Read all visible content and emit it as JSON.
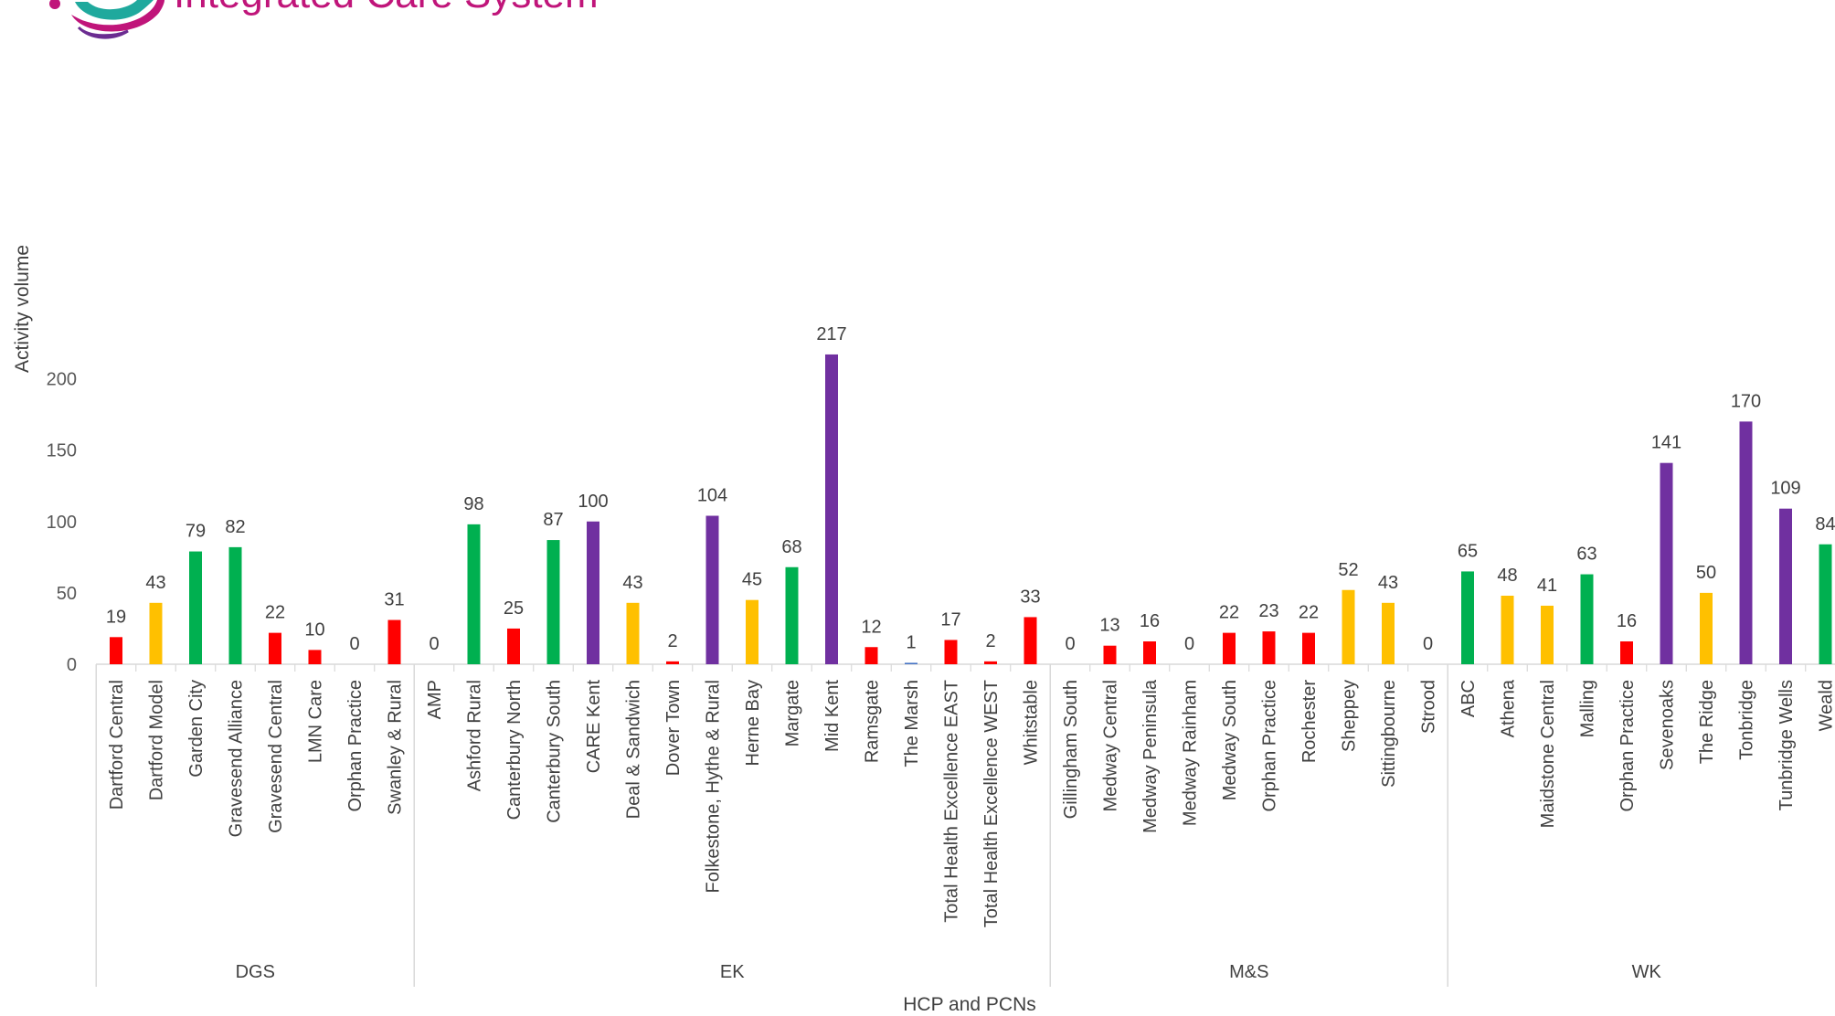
{
  "logo": {
    "text": "Integrated Care System"
  },
  "colors": {
    "red": "#ff0000",
    "amber": "#ffc000",
    "green": "#00b050",
    "purple": "#7030a0",
    "blue": "#4472c4",
    "axis": "#d9d9d9",
    "text": "#404040",
    "logo_magenta": "#c0157a",
    "logo_teal": "#1fa99d",
    "logo_purple": "#6b2c91"
  },
  "chart_data": {
    "type": "bar",
    "xlabel": "HCP and PCNs",
    "ylabel": "Activity volume",
    "ylim": [
      0,
      200
    ],
    "yticks": [
      0,
      50,
      100,
      150,
      200
    ],
    "grid": false,
    "legend": "none",
    "groups": [
      {
        "name": "DGS",
        "categories": [
          {
            "label": "Dartford Central",
            "value": 19,
            "color": "red"
          },
          {
            "label": "Dartford Model",
            "value": 43,
            "color": "amber"
          },
          {
            "label": "Garden City",
            "value": 79,
            "color": "green"
          },
          {
            "label": "Gravesend Alliance",
            "value": 82,
            "color": "green"
          },
          {
            "label": "Gravesend Central",
            "value": 22,
            "color": "red"
          },
          {
            "label": "LMN Care",
            "value": 10,
            "color": "red"
          },
          {
            "label": "Orphan Practice",
            "value": 0,
            "color": "red"
          },
          {
            "label": "Swanley & Rural",
            "value": 31,
            "color": "red"
          }
        ]
      },
      {
        "name": "EK",
        "categories": [
          {
            "label": "AMP",
            "value": 0,
            "color": "red"
          },
          {
            "label": "Ashford Rural",
            "value": 98,
            "color": "green"
          },
          {
            "label": "Canterbury North",
            "value": 25,
            "color": "red"
          },
          {
            "label": "Canterbury South",
            "value": 87,
            "color": "green"
          },
          {
            "label": "CARE Kent",
            "value": 100,
            "color": "purple"
          },
          {
            "label": "Deal & Sandwich",
            "value": 43,
            "color": "amber"
          },
          {
            "label": "Dover Town",
            "value": 2,
            "color": "red"
          },
          {
            "label": "Folkestone, Hythe & Rural",
            "value": 104,
            "color": "purple"
          },
          {
            "label": "Herne Bay",
            "value": 45,
            "color": "amber"
          },
          {
            "label": "Margate",
            "value": 68,
            "color": "green"
          },
          {
            "label": "Mid Kent",
            "value": 217,
            "color": "purple"
          },
          {
            "label": "Ramsgate",
            "value": 12,
            "color": "red"
          },
          {
            "label": "The Marsh",
            "value": 1,
            "color": "blue"
          },
          {
            "label": "Total Health Excellence EAST",
            "value": 17,
            "color": "red"
          },
          {
            "label": "Total Health Excellence WEST",
            "value": 2,
            "color": "red"
          },
          {
            "label": "Whitstable",
            "value": 33,
            "color": "red"
          }
        ]
      },
      {
        "name": "M&S",
        "categories": [
          {
            "label": "Gillingham South",
            "value": 0,
            "color": "red"
          },
          {
            "label": "Medway Central",
            "value": 13,
            "color": "red"
          },
          {
            "label": "Medway Peninsula",
            "value": 16,
            "color": "red"
          },
          {
            "label": "Medway Rainham",
            "value": 0,
            "color": "red"
          },
          {
            "label": "Medway South",
            "value": 22,
            "color": "red"
          },
          {
            "label": "Orphan Practice",
            "value": 23,
            "color": "red"
          },
          {
            "label": "Rochester",
            "value": 22,
            "color": "red"
          },
          {
            "label": "Sheppey",
            "value": 52,
            "color": "amber"
          },
          {
            "label": "Sittingbourne",
            "value": 43,
            "color": "amber"
          },
          {
            "label": "Strood",
            "value": 0,
            "color": "red"
          }
        ]
      },
      {
        "name": "WK",
        "categories": [
          {
            "label": "ABC",
            "value": 65,
            "color": "green"
          },
          {
            "label": "Athena",
            "value": 48,
            "color": "amber"
          },
          {
            "label": "Maidstone Central",
            "value": 41,
            "color": "amber"
          },
          {
            "label": "Malling",
            "value": 63,
            "color": "green"
          },
          {
            "label": "Orphan Practice",
            "value": 16,
            "color": "red"
          },
          {
            "label": "Sevenoaks",
            "value": 141,
            "color": "purple"
          },
          {
            "label": "The Ridge",
            "value": 50,
            "color": "amber"
          },
          {
            "label": "Tonbridge",
            "value": 170,
            "color": "purple"
          },
          {
            "label": "Tunbridge Wells",
            "value": 109,
            "color": "purple"
          },
          {
            "label": "Weald",
            "value": 84,
            "color": "green"
          }
        ]
      }
    ]
  }
}
